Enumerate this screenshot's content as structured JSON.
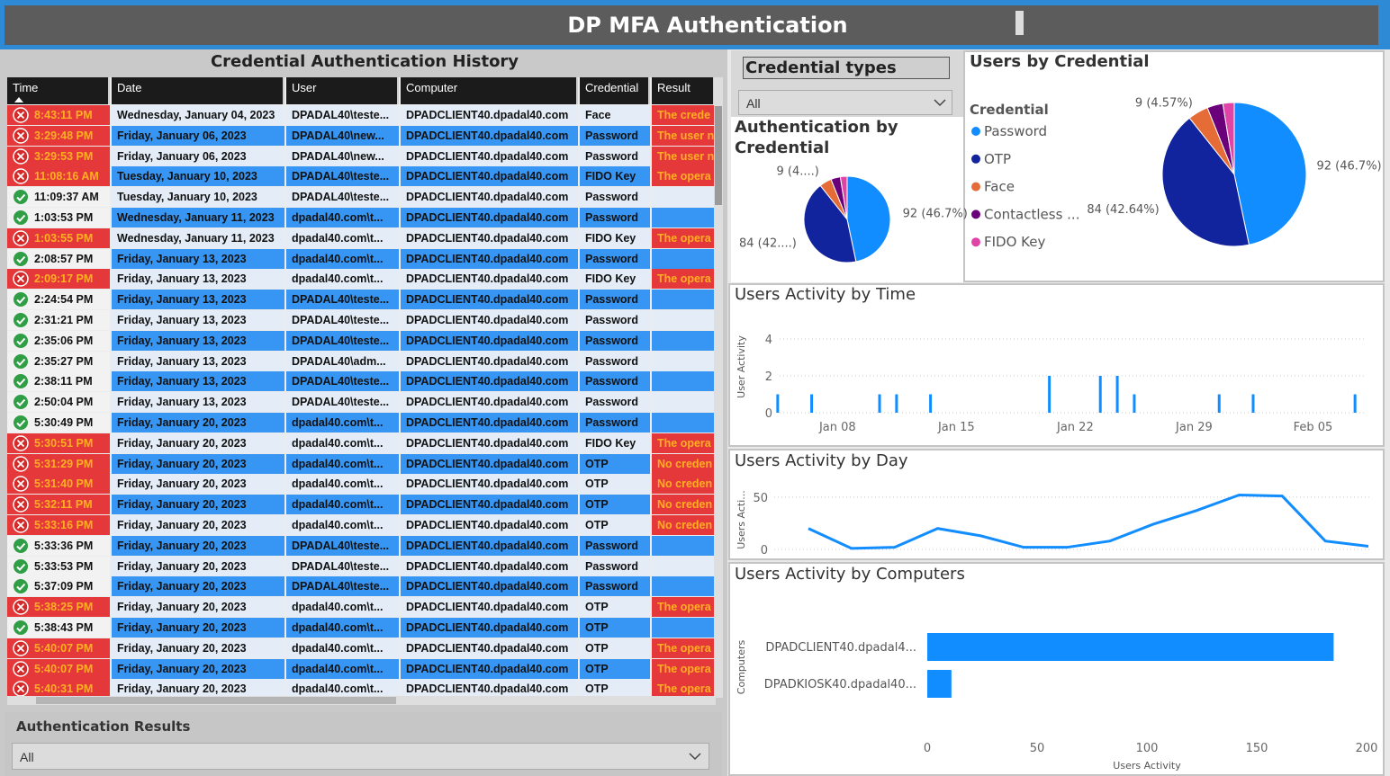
{
  "header": {
    "title": "DP MFA Authentication"
  },
  "history": {
    "title": "Credential Authentication History",
    "columns": [
      "Time",
      "Date",
      "User",
      "Computer",
      "Credential",
      "Result"
    ],
    "rows": [
      [
        "8:43:11 PM",
        "Wednesday, January 04, 2023",
        "DPADAL40\\teste...",
        "DPADCLIENT40.dpadal40.com",
        "Face",
        "The crede"
      ],
      [
        "3:29:48 PM",
        "Friday, January 06, 2023",
        "DPADAL40\\new...",
        "DPADCLIENT40.dpadal40.com",
        "Password",
        "The user n"
      ],
      [
        "3:29:53 PM",
        "Friday, January 06, 2023",
        "DPADAL40\\new...",
        "DPADCLIENT40.dpadal40.com",
        "Password",
        "The user n"
      ],
      [
        "11:08:16 AM",
        "Tuesday, January 10, 2023",
        "DPADAL40\\teste...",
        "DPADCLIENT40.dpadal40.com",
        "FIDO Key",
        "The opera"
      ],
      [
        "11:09:37 AM",
        "Tuesday, January 10, 2023",
        "DPADAL40\\teste...",
        "DPADCLIENT40.dpadal40.com",
        "Password",
        null
      ],
      [
        "1:03:53 PM",
        "Wednesday, January 11, 2023",
        "dpadal40.com\\t...",
        "DPADCLIENT40.dpadal40.com",
        "Password",
        null
      ],
      [
        "1:03:55 PM",
        "Wednesday, January 11, 2023",
        "dpadal40.com\\t...",
        "DPADCLIENT40.dpadal40.com",
        "FIDO Key",
        "The opera"
      ],
      [
        "2:08:57 PM",
        "Friday, January 13, 2023",
        "dpadal40.com\\t...",
        "DPADCLIENT40.dpadal40.com",
        "Password",
        null
      ],
      [
        "2:09:17 PM",
        "Friday, January 13, 2023",
        "dpadal40.com\\t...",
        "DPADCLIENT40.dpadal40.com",
        "FIDO Key",
        "The opera"
      ],
      [
        "2:24:54 PM",
        "Friday, January 13, 2023",
        "DPADAL40\\teste...",
        "DPADCLIENT40.dpadal40.com",
        "Password",
        null
      ],
      [
        "2:31:21 PM",
        "Friday, January 13, 2023",
        "DPADAL40\\teste...",
        "DPADCLIENT40.dpadal40.com",
        "Password",
        null
      ],
      [
        "2:35:06 PM",
        "Friday, January 13, 2023",
        "DPADAL40\\teste...",
        "DPADCLIENT40.dpadal40.com",
        "Password",
        null
      ],
      [
        "2:35:27 PM",
        "Friday, January 13, 2023",
        "DPADAL40\\adm...",
        "DPADCLIENT40.dpadal40.com",
        "Password",
        null
      ],
      [
        "2:38:11 PM",
        "Friday, January 13, 2023",
        "DPADAL40\\teste...",
        "DPADCLIENT40.dpadal40.com",
        "Password",
        null
      ],
      [
        "2:50:04 PM",
        "Friday, January 13, 2023",
        "DPADAL40\\teste...",
        "DPADCLIENT40.dpadal40.com",
        "Password",
        null
      ],
      [
        "5:30:49 PM",
        "Friday, January 20, 2023",
        "dpadal40.com\\t...",
        "DPADCLIENT40.dpadal40.com",
        "Password",
        null
      ],
      [
        "5:30:51 PM",
        "Friday, January 20, 2023",
        "dpadal40.com\\t...",
        "DPADCLIENT40.dpadal40.com",
        "FIDO Key",
        "The opera"
      ],
      [
        "5:31:29 PM",
        "Friday, January 20, 2023",
        "dpadal40.com\\t...",
        "DPADCLIENT40.dpadal40.com",
        "OTP",
        "No creden"
      ],
      [
        "5:31:40 PM",
        "Friday, January 20, 2023",
        "dpadal40.com\\t...",
        "DPADCLIENT40.dpadal40.com",
        "OTP",
        "No creden"
      ],
      [
        "5:32:11 PM",
        "Friday, January 20, 2023",
        "dpadal40.com\\t...",
        "DPADCLIENT40.dpadal40.com",
        "OTP",
        "No creden"
      ],
      [
        "5:33:16 PM",
        "Friday, January 20, 2023",
        "dpadal40.com\\t...",
        "DPADCLIENT40.dpadal40.com",
        "OTP",
        "No creden"
      ],
      [
        "5:33:36 PM",
        "Friday, January 20, 2023",
        "DPADAL40\\teste...",
        "DPADCLIENT40.dpadal40.com",
        "Password",
        null
      ],
      [
        "5:33:53 PM",
        "Friday, January 20, 2023",
        "DPADAL40\\teste...",
        "DPADCLIENT40.dpadal40.com",
        "Password",
        null
      ],
      [
        "5:37:09 PM",
        "Friday, January 20, 2023",
        "DPADAL40\\teste...",
        "DPADCLIENT40.dpadal40.com",
        "Password",
        null
      ],
      [
        "5:38:25 PM",
        "Friday, January 20, 2023",
        "dpadal40.com\\t...",
        "DPADCLIENT40.dpadal40.com",
        "OTP",
        "The opera"
      ],
      [
        "5:38:43 PM",
        "Friday, January 20, 2023",
        "dpadal40.com\\t...",
        "DPADCLIENT40.dpadal40.com",
        "OTP",
        null
      ],
      [
        "5:40:07 PM",
        "Friday, January 20, 2023",
        "dpadal40.com\\t...",
        "DPADCLIENT40.dpadal40.com",
        "OTP",
        "The opera"
      ],
      [
        "5:40:07 PM",
        "Friday, January 20, 2023",
        "dpadal40.com\\t...",
        "DPADCLIENT40.dpadal40.com",
        "OTP",
        "The opera"
      ],
      [
        "5:40:31 PM",
        "Friday, January 20, 2023",
        "dpadal40.com\\t...",
        "DPADCLIENT40.dpadal40.com",
        "OTP",
        "The opera"
      ]
    ],
    "row_status": [
      "fail",
      "fail",
      "fail",
      "fail",
      "ok",
      "ok",
      "fail",
      "ok",
      "fail",
      "ok",
      "ok",
      "ok",
      "ok",
      "ok",
      "ok",
      "ok",
      "fail",
      "fail",
      "fail",
      "fail",
      "fail",
      "ok",
      "ok",
      "ok",
      "fail",
      "ok",
      "fail",
      "fail",
      "fail"
    ]
  },
  "results_slicer": {
    "title": "Authentication Results",
    "selected": "All"
  },
  "credential_slicer": {
    "title": "Credential types",
    "selected": "All"
  },
  "chart_data": [
    {
      "type": "pie",
      "title": "Authentication by Credential",
      "categories": [
        "Password",
        "OTP",
        "Face",
        "Contactless ...",
        "FIDO Key"
      ],
      "values": [
        92,
        84,
        9,
        7,
        5
      ],
      "value_labels": [
        "92 (46.7%)",
        "84 (42....)",
        "9 (4....)",
        null,
        null
      ],
      "colors": [
        "#118DFF",
        "#12239E",
        "#E66C37",
        "#6B007B",
        "#E044A7"
      ],
      "legend": false
    },
    {
      "type": "pie",
      "title": "Users by Credential",
      "legend_title": "Credential",
      "categories": [
        "Password",
        "OTP",
        "Face",
        "Contactless ...",
        "FIDO Key"
      ],
      "values": [
        92,
        84,
        9,
        7,
        5
      ],
      "value_labels": [
        "92 (46.7%)",
        "84 (42.64%)",
        "9 (4.57%)",
        null,
        null
      ],
      "colors": [
        "#118DFF",
        "#12239E",
        "#E66C37",
        "#6B007B",
        "#E044A7"
      ],
      "legend": true
    },
    {
      "type": "bar",
      "title": "Users Activity by Time",
      "y_label": "User Activity",
      "x": [
        "Jan 04",
        "Jan 06",
        "Jan 10",
        "Jan 11",
        "Jan 13",
        "Jan 20",
        "Jan 23",
        "Jan 24",
        "Jan 25",
        "Jan 30",
        "Feb 01",
        "Feb 07"
      ],
      "values": [
        1,
        1,
        1,
        1,
        1,
        2,
        2,
        2,
        1,
        1,
        1,
        1
      ],
      "xlim": [
        "Jan 03",
        "Feb 08"
      ],
      "xticks": [
        "Jan 08",
        "Jan 15",
        "Jan 22",
        "Jan 29",
        "Feb 05"
      ],
      "ylim": [
        0,
        4
      ],
      "yticks": [
        0,
        2,
        4
      ],
      "grid": true,
      "color": "#118DFF"
    },
    {
      "type": "line",
      "title": "Users Activity by Day",
      "y_label": "Users Acti...",
      "categories": [
        null,
        null,
        null,
        null,
        null,
        null,
        null,
        null,
        null,
        null,
        null,
        null,
        null,
        null
      ],
      "values": [
        20,
        1,
        2,
        20,
        13,
        2,
        2,
        8,
        24,
        37,
        52,
        51,
        8,
        3
      ],
      "ylim": [
        0,
        55
      ],
      "yticks": [
        0,
        50
      ],
      "grid": true,
      "color": "#118DFF"
    },
    {
      "type": "barh",
      "title": "Users Activity by Computers",
      "x_label": "Users Activity",
      "y_label": "Computers",
      "categories": [
        "DPADCLIENT40.dpadal4...",
        "DPADKIOSK40.dpadal40..."
      ],
      "values": [
        185,
        11
      ],
      "xlim": [
        0,
        200
      ],
      "xticks": [
        0,
        50,
        100,
        150,
        200
      ],
      "grid": false,
      "color": "#118DFF"
    }
  ]
}
